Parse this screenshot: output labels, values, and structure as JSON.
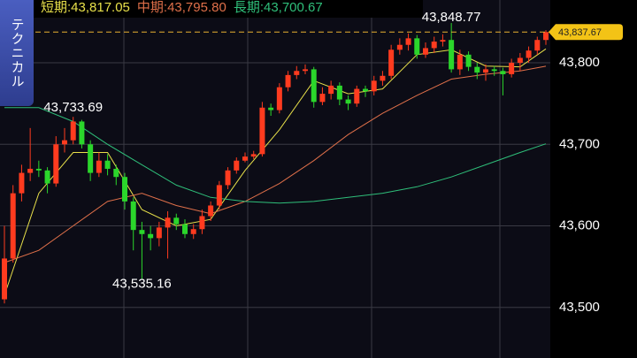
{
  "side_tab": "テクニカル",
  "chart_data": {
    "type": "candlestick",
    "legend": [
      "短期:43,817.05",
      "中期:43,795.80",
      "長期:43,700.67"
    ],
    "up_color": "#ff3b1f",
    "down_color": "#2bd62b",
    "open": [
      43510,
      43560,
      43640,
      43665,
      43670,
      43668,
      43652,
      43700,
      43705,
      43728,
      43700,
      43665,
      43680,
      43670,
      43660,
      43630,
      43595,
      43590,
      43585,
      43598,
      43610,
      43602,
      43590,
      43596,
      43612,
      43625,
      43650,
      43668,
      43680,
      43685,
      43688,
      43745,
      43742,
      43770,
      43785,
      43790,
      43792,
      43752,
      43762,
      43772,
      43755,
      43750,
      43768,
      43765,
      43778,
      43784,
      43816,
      43822,
      43830,
      43810,
      43818,
      43826,
      43828,
      43792,
      43810,
      43795,
      43788,
      43792,
      43790,
      43786,
      43800,
      43806,
      43815,
      43828
    ],
    "high": [
      43600,
      43650,
      43675,
      43720,
      43680,
      43672,
      43710,
      43720,
      43733.69,
      43730,
      43705,
      43690,
      43688,
      43675,
      43665,
      43635,
      43605,
      43600,
      43605,
      43618,
      43615,
      43608,
      43602,
      43620,
      43630,
      43655,
      43672,
      43684,
      43690,
      43692,
      43752,
      43750,
      43775,
      43790,
      43796,
      43798,
      43795,
      43770,
      43778,
      43776,
      43760,
      43772,
      43772,
      43784,
      43790,
      43822,
      43830,
      43836,
      43834,
      43825,
      43832,
      43835,
      43848.77,
      43816,
      43814,
      43800,
      43798,
      43796,
      43794,
      43805,
      43812,
      43820,
      43832,
      43840
    ],
    "low": [
      43505,
      43555,
      43630,
      43655,
      43660,
      43640,
      43648,
      43690,
      43700,
      43695,
      43655,
      43660,
      43662,
      43650,
      43620,
      43570,
      43535.16,
      43570,
      43575,
      43560,
      43595,
      43585,
      43584,
      43590,
      43606,
      43620,
      43645,
      43664,
      43678,
      43682,
      43685,
      43735,
      43738,
      43765,
      43780,
      43786,
      43745,
      43748,
      43755,
      43748,
      43742,
      43746,
      43758,
      43760,
      43772,
      43780,
      43810,
      43815,
      43805,
      43806,
      43812,
      43820,
      43788,
      43785,
      43790,
      43780,
      43778,
      43784,
      43760,
      43782,
      43790,
      43800,
      43810,
      43822
    ],
    "close": [
      43560,
      43640,
      43665,
      43670,
      43668,
      43652,
      43700,
      43705,
      43728,
      43700,
      43665,
      43680,
      43670,
      43660,
      43630,
      43595,
      43590,
      43585,
      43598,
      43610,
      43602,
      43590,
      43596,
      43612,
      43625,
      43650,
      43668,
      43680,
      43685,
      43688,
      43745,
      43742,
      43770,
      43785,
      43790,
      43792,
      43752,
      43762,
      43772,
      43755,
      43750,
      43768,
      43765,
      43778,
      43784,
      43816,
      43822,
      43830,
      43810,
      43818,
      43826,
      43828,
      43792,
      43810,
      43795,
      43788,
      43792,
      43790,
      43786,
      43800,
      43806,
      43815,
      43828,
      43837.67
    ],
    "series": [
      {
        "name": "短期",
        "color": "#e8e04a",
        "x": [
          0,
          4,
          8,
          12,
          16,
          20,
          24,
          28,
          32,
          36,
          40,
          44,
          48,
          52,
          56,
          60,
          63
        ],
        "values": [
          43515,
          43640,
          43690,
          43690,
          43620,
          43600,
          43608,
          43668,
          43718,
          43778,
          43762,
          43768,
          43810,
          43816,
          43796,
          43795,
          43817.05
        ]
      },
      {
        "name": "中期",
        "color": "#e0704a",
        "x": [
          0,
          4,
          8,
          12,
          16,
          20,
          24,
          28,
          32,
          36,
          40,
          44,
          48,
          52,
          56,
          60,
          63
        ],
        "values": [
          43555,
          43570,
          43600,
          43630,
          43640,
          43625,
          43615,
          43630,
          43652,
          43680,
          43712,
          43738,
          43760,
          43780,
          43786,
          43790,
          43795.8
        ]
      },
      {
        "name": "長期",
        "color": "#2fbf7a",
        "x": [
          0,
          4,
          8,
          12,
          16,
          20,
          24,
          28,
          32,
          36,
          40,
          44,
          48,
          52,
          56,
          60,
          63
        ],
        "values": [
          43745,
          43745,
          43728,
          43700,
          43675,
          43650,
          43635,
          43630,
          43628,
          43630,
          43635,
          43640,
          43648,
          43660,
          43675,
          43690,
          43700.67
        ]
      }
    ],
    "annotations": [
      {
        "text": "43,733.69",
        "value": 43733.69
      },
      {
        "text": "43,535.16",
        "value": 43535.16
      },
      {
        "text": "43,848.77",
        "value": 43848.77
      }
    ],
    "last_price": {
      "value": 43837.67,
      "label": "43,837.67"
    },
    "ylim": [
      43438,
      43877
    ],
    "yticks": [
      {
        "value": 43800,
        "label": "43,800"
      },
      {
        "value": 43700,
        "label": "43,700"
      },
      {
        "value": 43600,
        "label": "43,600"
      },
      {
        "value": 43500,
        "label": "43,500"
      }
    ],
    "grid": true
  }
}
